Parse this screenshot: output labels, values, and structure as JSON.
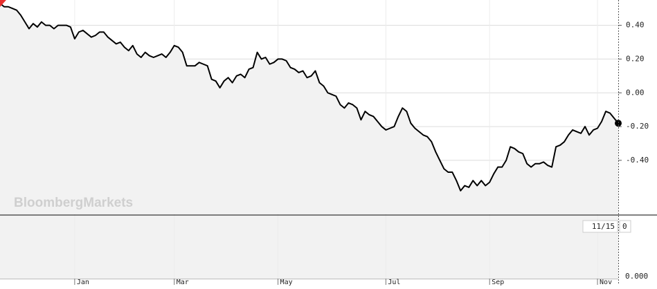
{
  "chart_data": {
    "type": "line",
    "watermark": "BloombergMarkets",
    "color": "#000000",
    "fill": "#f2f2f2",
    "grid": true,
    "categories": [
      null,
      null,
      null,
      null,
      null,
      null,
      null,
      null,
      null,
      null,
      null,
      null,
      null,
      null,
      null,
      null,
      null,
      null,
      "Jan",
      null,
      null,
      null,
      null,
      null,
      null,
      null,
      null,
      null,
      null,
      null,
      null,
      null,
      null,
      null,
      null,
      null,
      null,
      null,
      null,
      null,
      null,
      null,
      "Mar",
      null,
      null,
      null,
      null,
      null,
      null,
      null,
      null,
      null,
      null,
      null,
      null,
      null,
      null,
      null,
      null,
      null,
      null,
      null,
      null,
      null,
      null,
      null,
      null,
      "May",
      null,
      null,
      null,
      null,
      null,
      null,
      null,
      null,
      null,
      null,
      null,
      null,
      null,
      null,
      null,
      null,
      null,
      null,
      null,
      null,
      null,
      null,
      null,
      null,
      null,
      "Jul",
      null,
      null,
      null,
      null,
      null,
      null,
      null,
      null,
      null,
      null,
      null,
      null,
      null,
      null,
      null,
      null,
      null,
      null,
      null,
      null,
      null,
      null,
      null,
      null,
      "Sep",
      null,
      null,
      null,
      null,
      null,
      null,
      null,
      null,
      null,
      null,
      null,
      null,
      null,
      null,
      null,
      null,
      null,
      null,
      null,
      null,
      null,
      null,
      null,
      null,
      null,
      "Nov",
      null,
      null,
      null,
      null,
      null
    ],
    "values": [
      0.53,
      0.51,
      0.51,
      0.5,
      0.49,
      0.46,
      0.42,
      0.38,
      0.41,
      0.39,
      0.42,
      0.4,
      0.4,
      0.38,
      0.4,
      0.4,
      0.4,
      0.39,
      0.32,
      0.36,
      0.37,
      0.35,
      0.33,
      0.34,
      0.36,
      0.36,
      0.33,
      0.31,
      0.29,
      0.3,
      0.27,
      0.25,
      0.28,
      0.23,
      0.21,
      0.24,
      0.22,
      0.21,
      0.22,
      0.23,
      0.21,
      0.24,
      0.28,
      0.27,
      0.24,
      0.16,
      0.16,
      0.16,
      0.18,
      0.17,
      0.16,
      0.08,
      0.07,
      0.03,
      0.07,
      0.09,
      0.06,
      0.1,
      0.11,
      0.09,
      0.14,
      0.15,
      0.24,
      0.2,
      0.21,
      0.17,
      0.18,
      0.2,
      0.2,
      0.19,
      0.15,
      0.14,
      0.12,
      0.13,
      0.09,
      0.1,
      0.13,
      0.06,
      0.04,
      0.0,
      -0.01,
      -0.02,
      -0.07,
      -0.09,
      -0.06,
      -0.07,
      -0.09,
      -0.16,
      -0.11,
      -0.13,
      -0.14,
      -0.17,
      -0.2,
      -0.22,
      -0.21,
      -0.2,
      -0.14,
      -0.09,
      -0.11,
      -0.18,
      -0.21,
      -0.23,
      -0.25,
      -0.26,
      -0.29,
      -0.35,
      -0.4,
      -0.45,
      -0.47,
      -0.47,
      -0.52,
      -0.58,
      -0.55,
      -0.56,
      -0.52,
      -0.55,
      -0.52,
      -0.55,
      -0.53,
      -0.48,
      -0.44,
      -0.44,
      -0.4,
      -0.32,
      -0.33,
      -0.35,
      -0.36,
      -0.42,
      -0.44,
      -0.42,
      -0.42,
      -0.41,
      -0.43,
      -0.44,
      -0.32,
      -0.31,
      -0.29,
      -0.25,
      -0.22,
      -0.23,
      -0.24,
      -0.2,
      -0.25,
      -0.22,
      -0.21,
      -0.17,
      -0.11,
      -0.12,
      -0.15,
      -0.18
    ],
    "ylim": [
      -0.72,
      0.55
    ],
    "yticks": [
      {
        "value": 0.4,
        "label": "0.40"
      },
      {
        "value": 0.2,
        "label": "0.20"
      },
      {
        "value": 0,
        "label": "0.00"
      },
      {
        "value": -0.2,
        "label": "-0.20"
      },
      {
        "value": -0.4,
        "label": "-0.40"
      }
    ],
    "lower_panel": {
      "date_label": "11/15",
      "value": 0,
      "yticks": [
        {
          "value": 0,
          "label": "0.000"
        }
      ]
    }
  }
}
